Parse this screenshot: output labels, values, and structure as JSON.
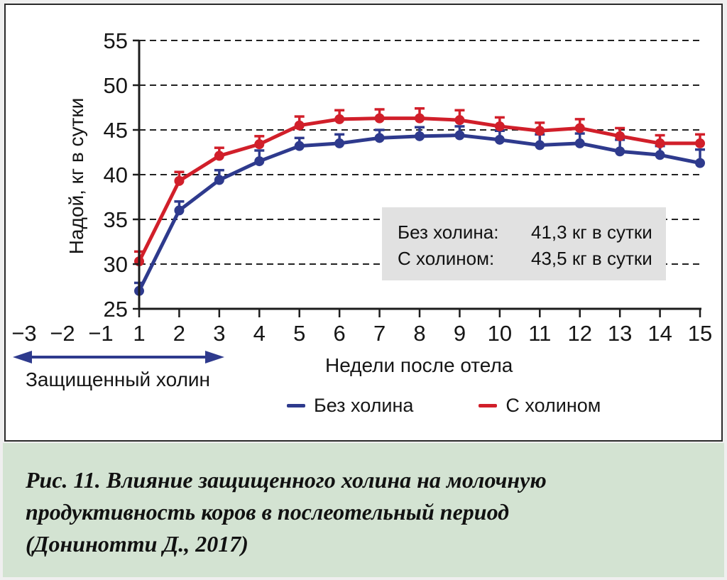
{
  "chart_data": {
    "type": "line",
    "x": [
      1,
      2,
      3,
      4,
      5,
      6,
      7,
      8,
      9,
      10,
      11,
      12,
      13,
      14,
      15
    ],
    "x_prelabels": [
      "−3",
      "−2",
      "−1"
    ],
    "xlabel": "Недели после отела",
    "ylabel": "Надой, кг в сутки",
    "ylim": [
      25,
      55
    ],
    "y_ticks": [
      55,
      50,
      45,
      40,
      35,
      30,
      25
    ],
    "grid": "horizontal-dashed",
    "legend_position": "bottom-center",
    "series": [
      {
        "name": "Без холина",
        "color": "#2e3a8d",
        "values": [
          27.0,
          36.0,
          39.4,
          41.5,
          43.2,
          43.5,
          44.1,
          44.3,
          44.4,
          43.9,
          43.3,
          43.5,
          42.6,
          42.2,
          41.3
        ],
        "errors_up": [
          0.9,
          1.0,
          1.1,
          1.2,
          0.9,
          1.0,
          0.9,
          1.0,
          1.0,
          1.0,
          1.2,
          1.1,
          1.3,
          1.0,
          1.5
        ]
      },
      {
        "name": "С холином",
        "color": "#d11f2a",
        "values": [
          30.3,
          39.3,
          42.1,
          43.4,
          45.5,
          46.2,
          46.3,
          46.3,
          46.1,
          45.4,
          44.9,
          45.2,
          44.3,
          43.5,
          43.5
        ],
        "errors_up": [
          1.1,
          1.0,
          0.9,
          0.9,
          1.0,
          1.0,
          1.0,
          1.1,
          1.1,
          1.0,
          0.9,
          1.0,
          0.9,
          0.9,
          1.0
        ]
      }
    ],
    "arrow_annotation": {
      "label": "Защищенный холин",
      "x_from": -3,
      "x_to": 3,
      "color": "#2e3a8d"
    }
  },
  "annotation": {
    "bg": "#e1e1e1",
    "rows": [
      {
        "label": "Без холина:",
        "value": "41,3 кг в сутки"
      },
      {
        "label": "С холином:",
        "value": "43,5 кг в сутки"
      }
    ]
  },
  "caption": {
    "bg": "#d3e3d2",
    "lines": [
      "Рис. 11. Влияние защищенного холина на молочную",
      "продуктивность коров в послеотельный период",
      "(Донинотти Д., 2017)"
    ]
  },
  "colors": {
    "axis": "#1c1c1c",
    "panel_border": "#2a2a2a",
    "text": "#161616"
  }
}
